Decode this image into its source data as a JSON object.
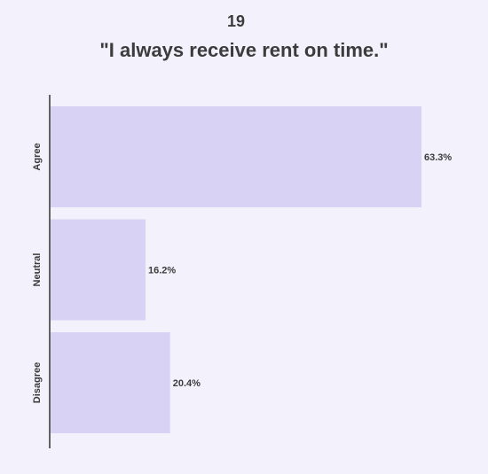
{
  "header": {
    "number": "19",
    "title": "\"I always receive rent on time.\""
  },
  "colors": {
    "bar": "#d8d3f5",
    "axis": "#333333",
    "text": "#3c3c3c",
    "background": "#f3f1fc"
  },
  "chart_data": {
    "type": "bar",
    "orientation": "horizontal",
    "categories": [
      "Agree",
      "Neutral",
      "Disagree"
    ],
    "values": [
      63.3,
      16.2,
      20.4
    ],
    "labels": [
      "63.3%",
      "16.2%",
      "20.4%"
    ],
    "unit": "%",
    "xlim": [
      0,
      100
    ],
    "grid": false,
    "legend": "none"
  }
}
